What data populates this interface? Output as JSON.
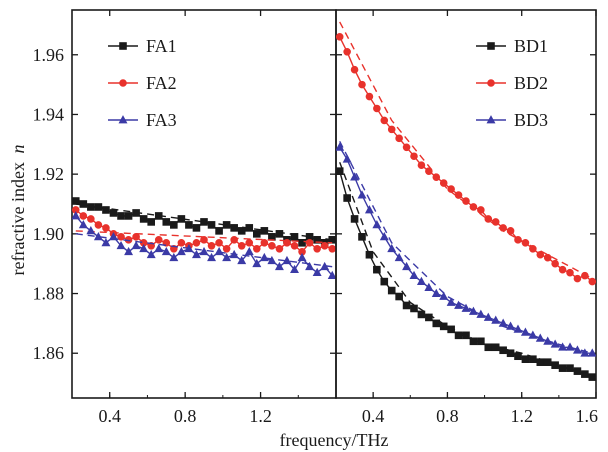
{
  "chart_data": {
    "type": "line",
    "ylabel_text": "refractive index",
    "ylabel_symbol": "n",
    "xlabel": "frequency/THz",
    "ylim": [
      1.845,
      1.975
    ],
    "yticks": [
      "1.86",
      "1.88",
      "1.90",
      "1.92",
      "1.94",
      "1.96"
    ],
    "yticks_values": [
      1.86,
      1.88,
      1.9,
      1.92,
      1.94,
      1.96
    ],
    "grid": false,
    "panels": [
      {
        "name": "left",
        "xlim": [
          0.2,
          1.6
        ],
        "xticks": [
          "0.4",
          "0.8",
          "1.2"
        ],
        "xticks_values": [
          0.4,
          0.8,
          1.2
        ],
        "legend_position": "top-left",
        "series": [
          {
            "name": "FA1",
            "color": "#1a1a1a",
            "marker": "square",
            "x": [
              0.22,
              0.26,
              0.3,
              0.34,
              0.38,
              0.42,
              0.46,
              0.5,
              0.54,
              0.58,
              0.62,
              0.66,
              0.7,
              0.74,
              0.78,
              0.82,
              0.86,
              0.9,
              0.94,
              0.98,
              1.02,
              1.06,
              1.1,
              1.14,
              1.18,
              1.22,
              1.26,
              1.3,
              1.34,
              1.38,
              1.42,
              1.46,
              1.5,
              1.54,
              1.58
            ],
            "y": [
              1.911,
              1.91,
              1.909,
              1.909,
              1.908,
              1.907,
              1.906,
              1.906,
              1.907,
              1.905,
              1.904,
              1.906,
              1.904,
              1.903,
              1.905,
              1.903,
              1.902,
              1.904,
              1.903,
              1.901,
              1.903,
              1.902,
              1.901,
              1.902,
              1.9,
              1.901,
              1.899,
              1.9,
              1.898,
              1.899,
              1.897,
              1.899,
              1.898,
              1.897,
              1.898
            ],
            "fit": [
              [
                0.22,
                1.91
              ],
              [
                1.58,
                1.898
              ]
            ]
          },
          {
            "name": "FA2",
            "color": "#e8322c",
            "marker": "circle",
            "x": [
              0.22,
              0.26,
              0.3,
              0.34,
              0.38,
              0.42,
              0.46,
              0.5,
              0.54,
              0.58,
              0.62,
              0.66,
              0.7,
              0.74,
              0.78,
              0.82,
              0.86,
              0.9,
              0.94,
              0.98,
              1.02,
              1.06,
              1.1,
              1.14,
              1.18,
              1.22,
              1.26,
              1.3,
              1.34,
              1.38,
              1.42,
              1.46,
              1.5,
              1.54,
              1.58
            ],
            "y": [
              1.908,
              1.906,
              1.905,
              1.903,
              1.902,
              1.9,
              1.899,
              1.898,
              1.899,
              1.897,
              1.896,
              1.898,
              1.897,
              1.895,
              1.897,
              1.896,
              1.897,
              1.898,
              1.896,
              1.897,
              1.895,
              1.898,
              1.896,
              1.897,
              1.895,
              1.897,
              1.896,
              1.895,
              1.897,
              1.896,
              1.894,
              1.897,
              1.895,
              1.896,
              1.895
            ],
            "fit": [
              [
                0.22,
                1.901
              ],
              [
                1.58,
                1.897
              ]
            ]
          },
          {
            "name": "FA3",
            "color": "#3b3aa6",
            "marker": "triangle",
            "x": [
              0.22,
              0.26,
              0.3,
              0.34,
              0.38,
              0.42,
              0.46,
              0.5,
              0.54,
              0.58,
              0.62,
              0.66,
              0.7,
              0.74,
              0.78,
              0.82,
              0.86,
              0.9,
              0.94,
              0.98,
              1.02,
              1.06,
              1.1,
              1.14,
              1.18,
              1.22,
              1.26,
              1.3,
              1.34,
              1.38,
              1.42,
              1.46,
              1.5,
              1.54,
              1.58
            ],
            "y": [
              1.906,
              1.903,
              1.901,
              1.899,
              1.897,
              1.899,
              1.896,
              1.894,
              1.896,
              1.895,
              1.893,
              1.895,
              1.894,
              1.892,
              1.894,
              1.895,
              1.893,
              1.894,
              1.892,
              1.894,
              1.892,
              1.893,
              1.891,
              1.894,
              1.89,
              1.892,
              1.891,
              1.889,
              1.891,
              1.888,
              1.892,
              1.889,
              1.887,
              1.889,
              1.886
            ],
            "fit": [
              [
                0.22,
                1.9
              ],
              [
                1.58,
                1.889
              ]
            ]
          }
        ]
      },
      {
        "name": "right",
        "xlim": [
          0.2,
          1.6
        ],
        "xticks": [
          "0.4",
          "0.8",
          "1.2",
          "1.6"
        ],
        "xticks_values": [
          0.4,
          0.8,
          1.2,
          1.6
        ],
        "legend_position": "top-right",
        "series": [
          {
            "name": "BD1",
            "color": "#1a1a1a",
            "marker": "square",
            "x": [
              0.22,
              0.26,
              0.3,
              0.34,
              0.38,
              0.42,
              0.46,
              0.5,
              0.54,
              0.58,
              0.62,
              0.66,
              0.7,
              0.74,
              0.78,
              0.82,
              0.86,
              0.9,
              0.94,
              0.98,
              1.02,
              1.06,
              1.1,
              1.14,
              1.18,
              1.22,
              1.26,
              1.3,
              1.34,
              1.38,
              1.42,
              1.46,
              1.5,
              1.54,
              1.58
            ],
            "y": [
              1.921,
              1.912,
              1.905,
              1.899,
              1.893,
              1.888,
              1.884,
              1.881,
              1.879,
              1.876,
              1.875,
              1.873,
              1.872,
              1.87,
              1.869,
              1.868,
              1.866,
              1.866,
              1.864,
              1.864,
              1.862,
              1.862,
              1.861,
              1.86,
              1.859,
              1.858,
              1.858,
              1.857,
              1.857,
              1.856,
              1.855,
              1.855,
              1.854,
              1.853,
              1.852
            ],
            "fit": [
              [
                0.22,
                1.924
              ],
              [
                0.4,
                1.894
              ],
              [
                0.6,
                1.877
              ],
              [
                0.8,
                1.869
              ],
              [
                1.0,
                1.863
              ],
              [
                1.2,
                1.86
              ],
              [
                1.4,
                1.856
              ],
              [
                1.58,
                1.852
              ]
            ]
          },
          {
            "name": "BD2",
            "color": "#e8322c",
            "marker": "circle",
            "x": [
              0.22,
              0.26,
              0.3,
              0.34,
              0.38,
              0.42,
              0.46,
              0.5,
              0.54,
              0.58,
              0.62,
              0.66,
              0.7,
              0.74,
              0.78,
              0.82,
              0.86,
              0.9,
              0.94,
              0.98,
              1.02,
              1.06,
              1.1,
              1.14,
              1.18,
              1.22,
              1.26,
              1.3,
              1.34,
              1.38,
              1.42,
              1.46,
              1.5,
              1.54,
              1.58
            ],
            "y": [
              1.966,
              1.961,
              1.955,
              1.95,
              1.946,
              1.942,
              1.938,
              1.935,
              1.932,
              1.929,
              1.926,
              1.923,
              1.921,
              1.919,
              1.917,
              1.915,
              1.913,
              1.911,
              1.909,
              1.908,
              1.905,
              1.904,
              1.902,
              1.901,
              1.898,
              1.897,
              1.895,
              1.893,
              1.892,
              1.89,
              1.888,
              1.887,
              1.885,
              1.886,
              1.884
            ],
            "fit": [
              [
                0.22,
                1.971
              ],
              [
                0.5,
                1.938
              ],
              [
                0.8,
                1.915
              ],
              [
                1.1,
                1.901
              ],
              [
                1.4,
                1.891
              ],
              [
                1.58,
                1.885
              ]
            ]
          },
          {
            "name": "BD3",
            "color": "#3b3aa6",
            "marker": "triangle",
            "x": [
              0.22,
              0.26,
              0.3,
              0.34,
              0.38,
              0.42,
              0.46,
              0.5,
              0.54,
              0.58,
              0.62,
              0.66,
              0.7,
              0.74,
              0.78,
              0.82,
              0.86,
              0.9,
              0.94,
              0.98,
              1.02,
              1.06,
              1.1,
              1.14,
              1.18,
              1.22,
              1.26,
              1.3,
              1.34,
              1.38,
              1.42,
              1.46,
              1.5,
              1.54,
              1.58
            ],
            "y": [
              1.929,
              1.925,
              1.919,
              1.913,
              1.908,
              1.903,
              1.899,
              1.895,
              1.892,
              1.889,
              1.886,
              1.884,
              1.882,
              1.88,
              1.879,
              1.877,
              1.876,
              1.875,
              1.874,
              1.873,
              1.872,
              1.871,
              1.87,
              1.869,
              1.868,
              1.867,
              1.866,
              1.865,
              1.864,
              1.863,
              1.862,
              1.862,
              1.861,
              1.86,
              1.86
            ],
            "fit": [
              [
                0.22,
                1.931
              ],
              [
                0.5,
                1.897
              ],
              [
                0.8,
                1.879
              ],
              [
                1.1,
                1.869
              ],
              [
                1.4,
                1.863
              ],
              [
                1.58,
                1.86
              ]
            ]
          }
        ]
      }
    ]
  }
}
